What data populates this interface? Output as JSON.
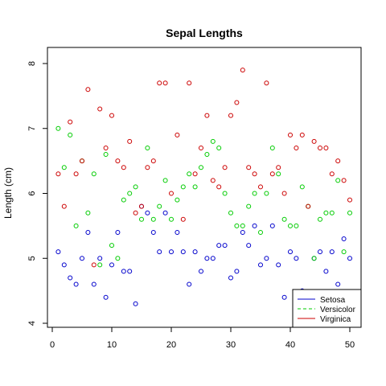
{
  "chart_data": {
    "type": "scatter",
    "title": "Sepal Lengths",
    "xlabel": "",
    "ylabel": "Length (cm)",
    "xlim": [
      0,
      50
    ],
    "ylim": [
      4,
      8
    ],
    "x_ticks": [
      0,
      10,
      20,
      30,
      40,
      50
    ],
    "y_ticks": [
      4,
      5,
      6,
      7,
      8
    ],
    "grid": false,
    "legend_position": "bottom-right",
    "x": [
      1,
      2,
      3,
      4,
      5,
      6,
      7,
      8,
      9,
      10,
      11,
      12,
      13,
      14,
      15,
      16,
      17,
      18,
      19,
      20,
      21,
      22,
      23,
      24,
      25,
      26,
      27,
      28,
      29,
      30,
      31,
      32,
      33,
      34,
      35,
      36,
      37,
      38,
      39,
      40,
      41,
      42,
      43,
      44,
      45,
      46,
      47,
      48,
      49,
      50
    ],
    "series": [
      {
        "name": "Setosa",
        "color": "#0000CC",
        "marker": "open-circle",
        "legend_line": "solid",
        "values": [
          5.1,
          4.9,
          4.7,
          4.6,
          5.0,
          5.4,
          4.6,
          5.0,
          4.4,
          4.9,
          5.4,
          4.8,
          4.8,
          4.3,
          5.8,
          5.7,
          5.4,
          5.1,
          5.7,
          5.1,
          5.4,
          5.1,
          4.6,
          5.1,
          4.8,
          5.0,
          5.0,
          5.2,
          5.2,
          4.7,
          4.8,
          5.4,
          5.2,
          5.5,
          4.9,
          5.0,
          5.5,
          4.9,
          4.4,
          5.1,
          5.0,
          4.5,
          4.4,
          5.0,
          5.1,
          4.8,
          5.1,
          4.6,
          5.3,
          5.0
        ]
      },
      {
        "name": "Versicolor",
        "color": "#00CC00",
        "marker": "open-circle",
        "legend_line": "dashed",
        "values": [
          7.0,
          6.4,
          6.9,
          5.5,
          6.5,
          5.7,
          6.3,
          4.9,
          6.6,
          5.2,
          5.0,
          5.9,
          6.0,
          6.1,
          5.6,
          6.7,
          5.6,
          5.8,
          6.2,
          5.6,
          5.9,
          6.1,
          6.3,
          6.1,
          6.4,
          6.6,
          6.8,
          6.7,
          6.0,
          5.7,
          5.5,
          5.5,
          5.8,
          6.0,
          5.4,
          6.0,
          6.7,
          6.3,
          5.6,
          5.5,
          5.5,
          6.1,
          5.8,
          5.0,
          5.6,
          5.7,
          5.7,
          6.2,
          5.1,
          5.7
        ]
      },
      {
        "name": "Virginica",
        "color": "#CC0000",
        "marker": "open-circle",
        "legend_line": "solid",
        "values": [
          6.3,
          5.8,
          7.1,
          6.3,
          6.5,
          7.6,
          4.9,
          7.3,
          6.7,
          7.2,
          6.5,
          6.4,
          6.8,
          5.7,
          5.8,
          6.4,
          6.5,
          7.7,
          7.7,
          6.0,
          6.9,
          5.6,
          7.7,
          6.3,
          6.7,
          7.2,
          6.2,
          6.1,
          6.4,
          7.2,
          7.4,
          7.9,
          6.4,
          6.3,
          6.1,
          7.7,
          6.3,
          6.4,
          6.0,
          6.9,
          6.7,
          6.9,
          5.8,
          6.8,
          6.7,
          6.7,
          6.3,
          6.5,
          6.2,
          5.9
        ]
      }
    ]
  }
}
